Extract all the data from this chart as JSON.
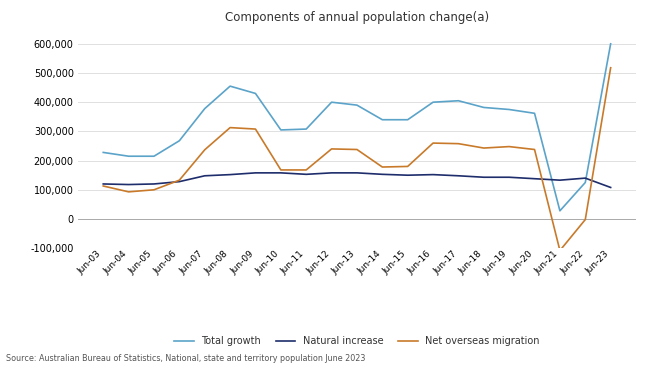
{
  "title": "Components of annual population change(a)",
  "source": "Source: Australian Bureau of Statistics, National, state and territory population June 2023",
  "x_labels": [
    "Jun-03",
    "Jun-04",
    "Jun-05",
    "Jun-06",
    "Jun-07",
    "Jun-08",
    "Jun-09",
    "Jun-10",
    "Jun-11",
    "Jun-12",
    "Jun-13",
    "Jun-14",
    "Jun-15",
    "Jun-16",
    "Jun-17",
    "Jun-18",
    "Jun-19",
    "Jun-20",
    "Jun-21",
    "Jun-22",
    "Jun-23"
  ],
  "total_growth": [
    228000,
    215000,
    215000,
    268000,
    378000,
    455000,
    430000,
    305000,
    308000,
    400000,
    390000,
    340000,
    340000,
    400000,
    405000,
    382000,
    375000,
    362000,
    28000,
    125000,
    600000
  ],
  "natural_increase": [
    120000,
    118000,
    120000,
    128000,
    148000,
    152000,
    158000,
    158000,
    153000,
    158000,
    158000,
    153000,
    150000,
    152000,
    148000,
    143000,
    143000,
    138000,
    133000,
    140000,
    108000
  ],
  "net_overseas_migration": [
    113000,
    93000,
    100000,
    133000,
    237000,
    313000,
    308000,
    168000,
    168000,
    240000,
    238000,
    178000,
    180000,
    260000,
    258000,
    243000,
    248000,
    238000,
    -108000,
    -2000,
    518000
  ],
  "total_growth_color": "#5ba3c9",
  "natural_increase_color": "#1e2d6b",
  "net_overseas_migration_color": "#c87a2a",
  "ylim": [
    -100000,
    650000
  ],
  "yticks": [
    -100000,
    0,
    100000,
    200000,
    300000,
    400000,
    500000,
    600000
  ],
  "legend_entries": [
    "Total growth",
    "Natural increase",
    "Net overseas migration"
  ],
  "bg_color": "#ffffff",
  "grid_color": "#e0e0e0"
}
